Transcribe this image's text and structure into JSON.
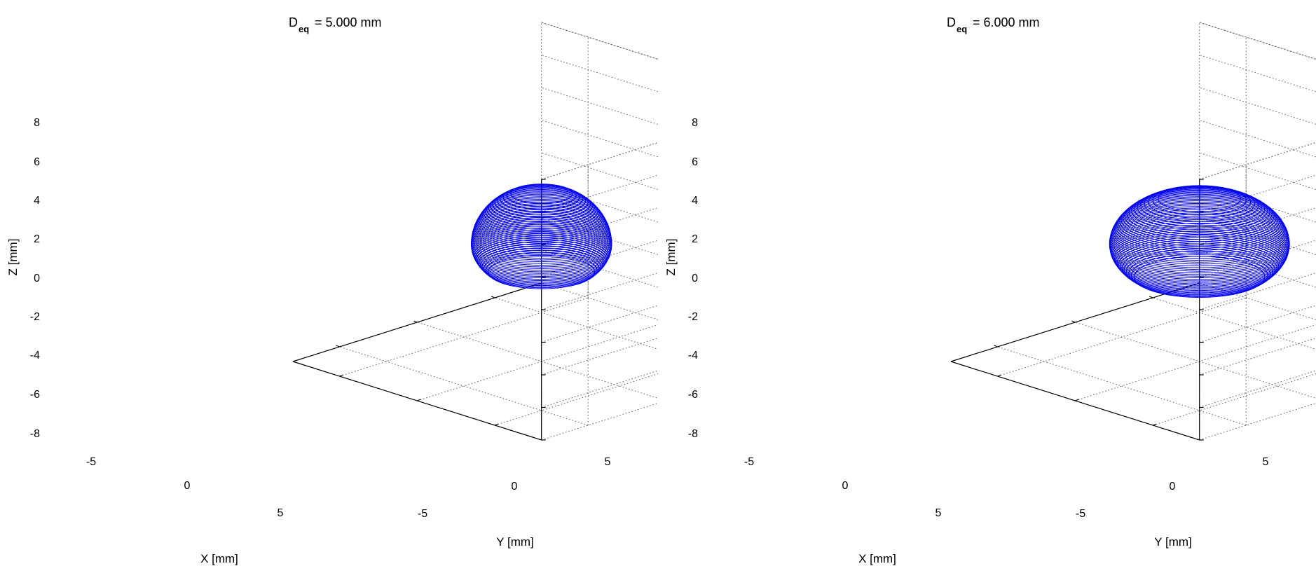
{
  "colors": {
    "surface": "#0000ee",
    "axis": "#000000",
    "grid": "#555555",
    "background": "#ffffff"
  },
  "chart_data": [
    {
      "type": "3d-surface-wireframe",
      "title_prefix": "D",
      "title_subscript": "eq",
      "title_value": "=  5.000 mm",
      "xlabel": "X [mm]",
      "ylabel": "Y [mm]",
      "zlabel": "Z [mm]",
      "xlim": [
        -8,
        8
      ],
      "ylim": [
        -8,
        8
      ],
      "zlim": [
        -8,
        8
      ],
      "xticks": [
        "-5",
        "0",
        "5"
      ],
      "yticks": [
        "-5",
        "0",
        "5"
      ],
      "zticks": [
        "8",
        "6",
        "4",
        "2",
        "0",
        "-2",
        "-4",
        "-6",
        "-8"
      ],
      "grid": true,
      "surface": {
        "shape": "truncated spheroid",
        "x_radius": 3.2,
        "y_radius": 3.2,
        "z_top": 2.3,
        "z_bottom": -2.5,
        "z_max_width": -0.8
      }
    },
    {
      "type": "3d-surface-wireframe",
      "title_prefix": "D",
      "title_subscript": "eq",
      "title_value": "=  6.000 mm",
      "xlabel": "X [mm]",
      "ylabel": "Y [mm]",
      "zlabel": "Z [mm]",
      "xlim": [
        -8,
        8
      ],
      "ylim": [
        -8,
        8
      ],
      "zlim": [
        -8,
        8
      ],
      "xticks": [
        "-5",
        "0",
        "5"
      ],
      "yticks": [
        "-5",
        "0",
        "5"
      ],
      "zticks": [
        "8",
        "6",
        "4",
        "2",
        "0",
        "-2",
        "-4",
        "-6",
        "-8"
      ],
      "grid": true,
      "surface": {
        "shape": "truncated spheroid",
        "x_radius": 4.1,
        "y_radius": 4.1,
        "z_top": 2.0,
        "z_bottom": -2.8,
        "z_max_width": -0.8
      }
    }
  ]
}
